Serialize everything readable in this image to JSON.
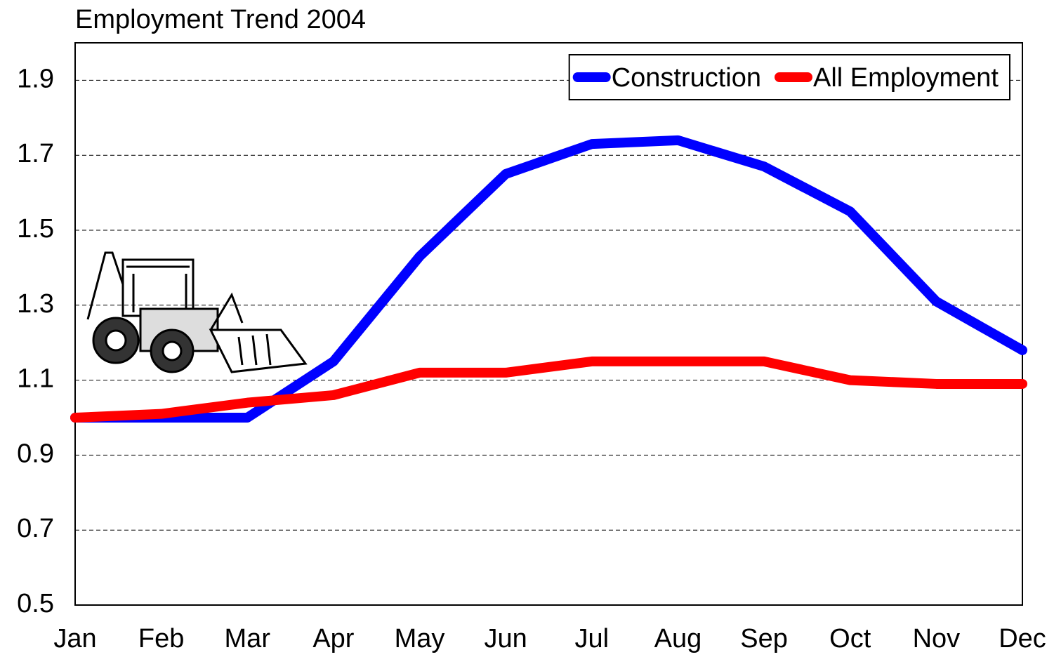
{
  "chart_data": {
    "type": "line",
    "title": "Employment Trend 2004",
    "categories": [
      "Jan",
      "Feb",
      "Mar",
      "Apr",
      "May",
      "Jun",
      "Jul",
      "Aug",
      "Sep",
      "Oct",
      "Nov",
      "Dec"
    ],
    "series": [
      {
        "name": "Construction",
        "color": "#0000ff",
        "values": [
          1.0,
          1.0,
          1.0,
          1.15,
          1.43,
          1.65,
          1.73,
          1.74,
          1.67,
          1.55,
          1.31,
          1.18
        ]
      },
      {
        "name": "All Employment",
        "color": "#ff0000",
        "values": [
          1.0,
          1.01,
          1.04,
          1.06,
          1.12,
          1.12,
          1.15,
          1.15,
          1.15,
          1.1,
          1.09,
          1.09
        ]
      }
    ],
    "ylim": [
      0.5,
      2.0
    ],
    "yticks": [
      0.5,
      0.7,
      0.9,
      1.1,
      1.3,
      1.5,
      1.7,
      1.9
    ],
    "grid": true,
    "legend": "top-right"
  }
}
